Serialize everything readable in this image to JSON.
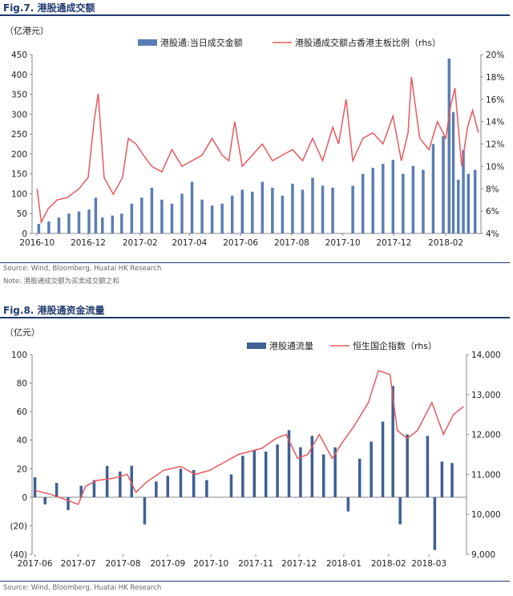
{
  "fig7": {
    "title": "Fig.7. 港股通成交额",
    "source": "Source: Wind, Bloomberg, Huatai HK Research",
    "note": "Note: 港股通成交额为买卖成交额之和",
    "chart_data": {
      "type": "bar",
      "unit_label": "（亿港元）",
      "legend_position": "top",
      "series": [
        {
          "name": "港股通:当日成交金额",
          "kind": "bar",
          "axis": "left",
          "color": "#5b7db5",
          "points": [
            [
              "2016-10-03",
              24
            ],
            [
              "2016-10-15",
              30
            ],
            [
              "2016-10-27",
              40
            ],
            [
              "2016-11-08",
              50
            ],
            [
              "2016-11-20",
              55
            ],
            [
              "2016-12-02",
              60
            ],
            [
              "2016-12-10",
              90
            ],
            [
              "2016-12-18",
              40
            ],
            [
              "2016-12-30",
              45
            ],
            [
              "2017-01-10",
              50
            ],
            [
              "2017-01-22",
              75
            ],
            [
              "2017-02-03",
              90
            ],
            [
              "2017-02-15",
              115
            ],
            [
              "2017-02-27",
              85
            ],
            [
              "2017-03-11",
              75
            ],
            [
              "2017-03-23",
              100
            ],
            [
              "2017-04-04",
              130
            ],
            [
              "2017-04-16",
              85
            ],
            [
              "2017-04-28",
              70
            ],
            [
              "2017-05-10",
              75
            ],
            [
              "2017-05-22",
              95
            ],
            [
              "2017-06-03",
              110
            ],
            [
              "2017-06-15",
              105
            ],
            [
              "2017-06-27",
              130
            ],
            [
              "2017-07-09",
              115
            ],
            [
              "2017-07-21",
              95
            ],
            [
              "2017-08-02",
              125
            ],
            [
              "2017-08-14",
              110
            ],
            [
              "2017-08-26",
              140
            ],
            [
              "2017-09-07",
              120
            ],
            [
              "2017-09-19",
              115
            ],
            [
              "2017-10-01",
              0
            ],
            [
              "2017-10-13",
              120
            ],
            [
              "2017-10-25",
              150
            ],
            [
              "2017-11-06",
              165
            ],
            [
              "2017-11-18",
              175
            ],
            [
              "2017-11-30",
              185
            ],
            [
              "2017-12-12",
              150
            ],
            [
              "2017-12-24",
              170
            ],
            [
              "2018-01-05",
              160
            ],
            [
              "2018-01-17",
              225
            ],
            [
              "2018-01-29",
              245
            ],
            [
              "2018-02-05",
              440
            ],
            [
              "2018-02-10",
              305
            ],
            [
              "2018-02-16",
              135
            ],
            [
              "2018-02-22",
              210
            ],
            [
              "2018-02-28",
              150
            ],
            [
              "2018-03-08",
              160
            ]
          ]
        },
        {
          "name": "港股通成交额占香港主板比例（rhs）",
          "kind": "line",
          "axis": "right",
          "color": "#e8585c",
          "points": [
            [
              "2016-10-01",
              8.0
            ],
            [
              "2016-10-06",
              5.0
            ],
            [
              "2016-10-14",
              6.2
            ],
            [
              "2016-10-25",
              7.0
            ],
            [
              "2016-11-06",
              7.2
            ],
            [
              "2016-11-20",
              8.0
            ],
            [
              "2016-12-01",
              9.0
            ],
            [
              "2016-12-08",
              14.0
            ],
            [
              "2016-12-13",
              16.5
            ],
            [
              "2016-12-20",
              9.0
            ],
            [
              "2016-12-31",
              7.5
            ],
            [
              "2017-01-11",
              9.0
            ],
            [
              "2017-01-18",
              12.5
            ],
            [
              "2017-01-27",
              12.0
            ],
            [
              "2017-02-05",
              11.0
            ],
            [
              "2017-02-15",
              10.0
            ],
            [
              "2017-02-27",
              9.5
            ],
            [
              "2017-03-11",
              11.5
            ],
            [
              "2017-03-23",
              10.0
            ],
            [
              "2017-04-04",
              10.5
            ],
            [
              "2017-04-16",
              11.0
            ],
            [
              "2017-04-28",
              12.5
            ],
            [
              "2017-05-10",
              11.0
            ],
            [
              "2017-05-18",
              10.5
            ],
            [
              "2017-05-25",
              14.0
            ],
            [
              "2017-06-03",
              10.0
            ],
            [
              "2017-06-15",
              11.0
            ],
            [
              "2017-06-27",
              12.0
            ],
            [
              "2017-07-09",
              10.5
            ],
            [
              "2017-07-21",
              11.0
            ],
            [
              "2017-08-02",
              11.5
            ],
            [
              "2017-08-14",
              10.5
            ],
            [
              "2017-08-26",
              12.5
            ],
            [
              "2017-09-07",
              10.5
            ],
            [
              "2017-09-19",
              13.5
            ],
            [
              "2017-09-26",
              12.0
            ],
            [
              "2017-10-05",
              16.0
            ],
            [
              "2017-10-13",
              10.5
            ],
            [
              "2017-10-25",
              12.5
            ],
            [
              "2017-11-06",
              13.0
            ],
            [
              "2017-11-18",
              12.0
            ],
            [
              "2017-11-30",
              14.5
            ],
            [
              "2017-12-10",
              10.5
            ],
            [
              "2017-12-18",
              13.0
            ],
            [
              "2017-12-22",
              18.0
            ],
            [
              "2018-01-01",
              12.5
            ],
            [
              "2018-01-12",
              11.5
            ],
            [
              "2018-01-22",
              14.0
            ],
            [
              "2018-02-01",
              12.5
            ],
            [
              "2018-02-07",
              15.5
            ],
            [
              "2018-02-12",
              17.0
            ],
            [
              "2018-02-20",
              10.0
            ],
            [
              "2018-02-27",
              13.5
            ],
            [
              "2018-03-05",
              15.0
            ],
            [
              "2018-03-12",
              13.0
            ]
          ]
        }
      ],
      "x_range": [
        "2016-09-25",
        "2018-03-15"
      ],
      "x_ticks": [
        [
          "2016-10",
          "2016-10-01"
        ],
        [
          "2016-12",
          "2016-12-01"
        ],
        [
          "2017-02",
          "2017-02-01"
        ],
        [
          "2017-04",
          "2017-04-01"
        ],
        [
          "2017-06",
          "2017-06-01"
        ],
        [
          "2017-08",
          "2017-08-01"
        ],
        [
          "2017-10",
          "2017-10-01"
        ],
        [
          "2017-12",
          "2017-12-01"
        ],
        [
          "2018-02",
          "2018-02-01"
        ]
      ],
      "y_left": {
        "min": 0,
        "max": 450,
        "ticks": [
          0,
          50,
          100,
          150,
          200,
          250,
          300,
          350,
          400,
          450
        ],
        "labels": [
          "0",
          "50",
          "100",
          "150",
          "200",
          "250",
          "300",
          "350",
          "400",
          "450"
        ]
      },
      "y_right": {
        "min": 4,
        "max": 20,
        "ticks": [
          4,
          6,
          8,
          10,
          12,
          14,
          16,
          18,
          20
        ],
        "labels": [
          "4%",
          "6%",
          "8%",
          "10%",
          "12%",
          "14%",
          "16%",
          "18%",
          "20%"
        ]
      },
      "grid": false
    }
  },
  "fig8": {
    "title": "Fig.8. 港股通资金流量",
    "source": "Source: Wind, Bloomberg, Huatai HK Research",
    "chart_data": {
      "type": "bar",
      "unit_label": "（亿元）",
      "legend_position": "top-right",
      "series": [
        {
          "name": "港股通流量",
          "kind": "bar",
          "axis": "left",
          "color": "#3d5f94",
          "points": [
            [
              "2017-06-01",
              14
            ],
            [
              "2017-06-08",
              -5
            ],
            [
              "2017-06-16",
              10
            ],
            [
              "2017-06-24",
              -9
            ],
            [
              "2017-07-03",
              8
            ],
            [
              "2017-07-12",
              12
            ],
            [
              "2017-07-21",
              22
            ],
            [
              "2017-07-30",
              18
            ],
            [
              "2017-08-07",
              22
            ],
            [
              "2017-08-16",
              -19
            ],
            [
              "2017-08-24",
              11
            ],
            [
              "2017-09-01",
              15
            ],
            [
              "2017-09-10",
              20
            ],
            [
              "2017-09-19",
              19
            ],
            [
              "2017-09-28",
              12
            ],
            [
              "2017-10-15",
              16
            ],
            [
              "2017-10-23",
              29
            ],
            [
              "2017-10-31",
              33
            ],
            [
              "2017-11-08",
              32
            ],
            [
              "2017-11-16",
              37
            ],
            [
              "2017-11-24",
              47
            ],
            [
              "2017-12-02",
              35
            ],
            [
              "2017-12-10",
              43
            ],
            [
              "2017-12-18",
              30
            ],
            [
              "2017-12-26",
              35
            ],
            [
              "2018-01-04",
              -10
            ],
            [
              "2018-01-12",
              27
            ],
            [
              "2018-01-20",
              39
            ],
            [
              "2018-01-28",
              53
            ],
            [
              "2018-02-04",
              78
            ],
            [
              "2018-02-09",
              -19
            ],
            [
              "2018-02-14",
              44
            ],
            [
              "2018-02-28",
              43
            ],
            [
              "2018-03-05",
              -37
            ],
            [
              "2018-03-10",
              25
            ],
            [
              "2018-03-17",
              24
            ]
          ]
        },
        {
          "name": "恒生国企指数（rhs）",
          "kind": "line",
          "axis": "right",
          "color": "#e8585c",
          "points": [
            [
              "2017-06-01",
              10600
            ],
            [
              "2017-06-12",
              10500
            ],
            [
              "2017-06-20",
              10400
            ],
            [
              "2017-07-01",
              10250
            ],
            [
              "2017-07-06",
              10700
            ],
            [
              "2017-07-14",
              10850
            ],
            [
              "2017-07-25",
              10900
            ],
            [
              "2017-08-04",
              11000
            ],
            [
              "2017-08-10",
              10550
            ],
            [
              "2017-08-17",
              10800
            ],
            [
              "2017-08-29",
              11100
            ],
            [
              "2017-09-10",
              11200
            ],
            [
              "2017-09-20",
              11000
            ],
            [
              "2017-09-30",
              11100
            ],
            [
              "2017-10-10",
              11300
            ],
            [
              "2017-10-20",
              11500
            ],
            [
              "2017-11-05",
              11650
            ],
            [
              "2017-11-15",
              11900
            ],
            [
              "2017-11-22",
              12000
            ],
            [
              "2017-11-30",
              11400
            ],
            [
              "2017-12-07",
              11500
            ],
            [
              "2017-12-15",
              12000
            ],
            [
              "2017-12-24",
              11400
            ],
            [
              "2017-12-31",
              11800
            ],
            [
              "2018-01-08",
              12200
            ],
            [
              "2018-01-18",
              12800
            ],
            [
              "2018-01-25",
              13600
            ],
            [
              "2018-02-02",
              13500
            ],
            [
              "2018-02-07",
              12100
            ],
            [
              "2018-02-14",
              11900
            ],
            [
              "2018-02-21",
              12100
            ],
            [
              "2018-03-03",
              12800
            ],
            [
              "2018-03-11",
              12000
            ],
            [
              "2018-03-18",
              12500
            ],
            [
              "2018-03-25",
              12700
            ]
          ]
        }
      ],
      "x_range": [
        "2017-05-30",
        "2018-03-27"
      ],
      "x_ticks": [
        [
          "2017-06",
          "2017-06-01"
        ],
        [
          "2017-07",
          "2017-07-01"
        ],
        [
          "2017-08",
          "2017-08-01"
        ],
        [
          "2017-09",
          "2017-09-01"
        ],
        [
          "2017-10",
          "2017-10-01"
        ],
        [
          "2017-11",
          "2017-11-01"
        ],
        [
          "2017-12",
          "2017-12-01"
        ],
        [
          "2018-01",
          "2018-01-01"
        ],
        [
          "2018-02",
          "2018-02-01"
        ],
        [
          "2018-03",
          "2018-03-01"
        ]
      ],
      "y_left": {
        "min": -40,
        "max": 100,
        "ticks": [
          -40,
          -20,
          0,
          20,
          40,
          60,
          80,
          100
        ],
        "labels": [
          "(40)",
          "(20)",
          "0",
          "20",
          "40",
          "60",
          "80",
          "100"
        ]
      },
      "y_right": {
        "min": 9000,
        "max": 14000,
        "ticks": [
          9000,
          10000,
          11000,
          12000,
          13000,
          14000
        ],
        "labels": [
          "9,000",
          "10,000",
          "11,000",
          "12,000",
          "13,000",
          "14,000"
        ]
      },
      "grid": false
    },
    "footer_source": "Source: Wind, Bloomberg, Huatai HK Research"
  }
}
